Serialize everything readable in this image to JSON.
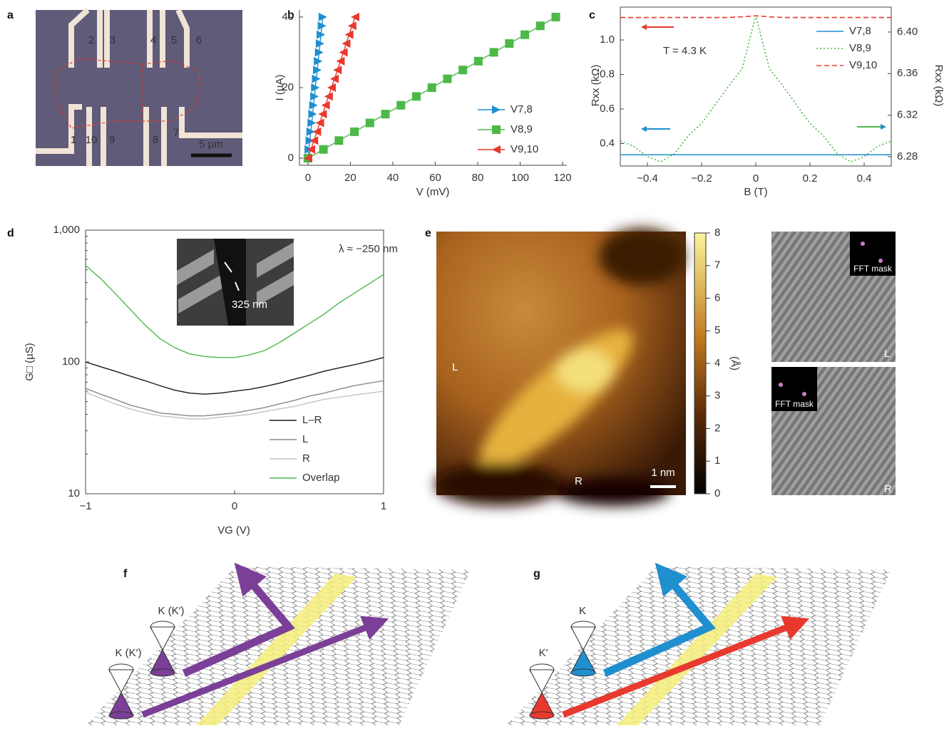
{
  "panel_a": {
    "label": "a",
    "contacts": [
      "1",
      "2",
      "3",
      "4",
      "5",
      "6",
      "7",
      "8",
      "9",
      "10"
    ],
    "scale_bar": "5 µm"
  },
  "chart_data": [
    {
      "type": "line",
      "panel": "b",
      "x_label": "V (mV)",
      "y_label": "I (µA)",
      "xlim": [
        -4,
        122
      ],
      "xticks": [
        0,
        20,
        40,
        60,
        80,
        100,
        120
      ],
      "ylim": [
        -2,
        42
      ],
      "yticks": [
        0,
        20,
        40
      ],
      "grid": false,
      "legend": "lower right",
      "series": [
        {
          "name": "V7,8",
          "color": "#1f8fd0",
          "marker": "triangle-right",
          "x": [
            0,
            0.4,
            0.9,
            1.3,
            1.8,
            2.2,
            2.6,
            3.1,
            3.5,
            3.9,
            4.4,
            4.8,
            5.3,
            5.7,
            6.1,
            6.6,
            7.0
          ],
          "values": [
            0,
            2.5,
            5,
            7.5,
            10,
            12.5,
            15,
            17.5,
            20,
            22.5,
            25,
            27.5,
            30,
            32.5,
            35,
            37.5,
            40
          ]
        },
        {
          "name": "V8,9",
          "color": "#4cb848",
          "marker": "square",
          "x": [
            0,
            7.3,
            14.6,
            21.9,
            29.2,
            36.5,
            43.8,
            51.1,
            58.4,
            65.7,
            73.0,
            80.3,
            87.6,
            94.9,
            102.2,
            109.5,
            116.8
          ],
          "values": [
            0,
            2.5,
            5,
            7.5,
            10,
            12.5,
            15,
            17.5,
            20,
            22.5,
            25,
            27.5,
            30,
            32.5,
            35,
            37.5,
            40
          ]
        },
        {
          "name": "V9,10",
          "color": "#e8392f",
          "marker": "triangle-left",
          "x": [
            0,
            1.4,
            2.8,
            4.2,
            5.6,
            6.9,
            8.3,
            9.7,
            11.1,
            12.5,
            13.9,
            15.3,
            16.7,
            18.0,
            19.4,
            20.8,
            22.2
          ],
          "values": [
            0,
            2.5,
            5,
            7.5,
            10,
            12.5,
            15,
            17.5,
            20,
            22.5,
            25,
            27.5,
            30,
            32.5,
            35,
            37.5,
            40
          ]
        }
      ]
    },
    {
      "type": "line",
      "panel": "c",
      "x_label": "B (T)",
      "y_label": "Rxx (kΩ)",
      "y2_label": "Rxx (kΩ)",
      "annotation": "T = 4.3 K",
      "xlim": [
        -0.5,
        0.5
      ],
      "xticks": [
        {
          "value": -0.4,
          "label": "−0.4"
        },
        {
          "value": -0.2,
          "label": "−0.2"
        },
        0,
        0.2,
        0.4
      ],
      "ylim": [
        0.27,
        1.19
      ],
      "yticks": [
        0.4,
        0.6,
        0.8,
        {
          "value": 1.0,
          "label": "1.0"
        }
      ],
      "y2lim": [
        6.271,
        6.424
      ],
      "y2ticks": [
        {
          "value": 6.28,
          "label": "6.28"
        },
        {
          "value": 6.32,
          "label": "6.32"
        },
        {
          "value": 6.36,
          "label": "6.36"
        },
        {
          "value": 6.4,
          "label": "6.40"
        }
      ],
      "grid": false,
      "legend": "upper right",
      "x": [
        -0.5,
        -0.45,
        -0.4,
        -0.35,
        -0.3,
        -0.25,
        -0.2,
        -0.15,
        -0.1,
        -0.05,
        0,
        0.05,
        0.1,
        0.15,
        0.2,
        0.25,
        0.3,
        0.35,
        0.4,
        0.45,
        0.5
      ],
      "series": [
        {
          "name": "V7,8",
          "color": "#1f8fd0",
          "dash": "solid",
          "values": [
            0.335,
            0.335,
            0.335,
            0.335,
            0.335,
            0.335,
            0.335,
            0.335,
            0.335,
            0.335,
            0.335,
            0.335,
            0.335,
            0.335,
            0.335,
            0.335,
            0.335,
            0.335,
            0.335,
            0.335,
            0.335
          ]
        },
        {
          "name": "V8,9",
          "color": "#4cb848",
          "dash": "dotted",
          "axis": "y2",
          "values": [
            6.295,
            6.29,
            6.28,
            6.275,
            6.283,
            6.3,
            6.312,
            6.33,
            6.348,
            6.365,
            6.416,
            6.365,
            6.348,
            6.33,
            6.312,
            6.3,
            6.283,
            6.275,
            6.28,
            6.29,
            6.295
          ]
        },
        {
          "name": "V9,10",
          "color": "#e8392f",
          "dash": "dashed",
          "values": [
            1.13,
            1.13,
            1.13,
            1.13,
            1.13,
            1.13,
            1.13,
            1.13,
            1.13,
            1.134,
            1.14,
            1.134,
            1.13,
            1.13,
            1.13,
            1.13,
            1.13,
            1.13,
            1.13,
            1.13,
            1.13
          ]
        }
      ]
    },
    {
      "type": "line",
      "panel": "d",
      "x_label": "VG (V)",
      "y_label": "G□ (µS)",
      "annotation": "λ ≈ −250 nm",
      "inset_label": "325 nm",
      "xlim": [
        -1,
        1
      ],
      "xticks": [
        {
          "value": -1,
          "label": "−1"
        },
        0,
        1
      ],
      "ylim": [
        10,
        1000
      ],
      "ylog": true,
      "yticks": [
        10,
        100,
        {
          "value": 1000,
          "label": "1,000"
        }
      ],
      "grid": false,
      "legend": "lower right",
      "x": [
        -1,
        -0.9,
        -0.8,
        -0.7,
        -0.6,
        -0.5,
        -0.4,
        -0.3,
        -0.2,
        -0.1,
        0,
        0.1,
        0.2,
        0.3,
        0.4,
        0.5,
        0.6,
        0.7,
        0.8,
        0.9,
        1
      ],
      "series": [
        {
          "name": "L–R",
          "color": "#1a1a1a",
          "values": [
            100,
            92,
            85,
            78,
            72,
            66,
            61,
            58,
            57,
            58,
            60,
            62,
            65,
            69,
            74,
            79,
            85,
            90,
            95,
            101,
            108
          ]
        },
        {
          "name": "L",
          "color": "#8a8a8a",
          "values": [
            63,
            57,
            52,
            47,
            44,
            41,
            40,
            39,
            39,
            40,
            41,
            43,
            45,
            48,
            51,
            55,
            58,
            62,
            66,
            69,
            72
          ]
        },
        {
          "name": "R",
          "color": "#c4c4c4",
          "values": [
            59,
            53,
            48,
            44,
            41,
            39,
            38,
            37,
            37,
            38,
            39,
            40,
            42,
            44,
            46,
            49,
            52,
            54,
            56,
            58,
            60
          ]
        },
        {
          "name": "Overlap",
          "color": "#4cb848",
          "values": [
            540,
            430,
            330,
            250,
            190,
            150,
            128,
            115,
            110,
            108,
            108,
            113,
            122,
            140,
            165,
            195,
            230,
            280,
            330,
            390,
            460
          ]
        }
      ]
    }
  ],
  "panel_e": {
    "label": "e",
    "colorbar_label": "(Å)",
    "colorbar_lim": [
      0,
      8
    ],
    "colorbar_ticks": [
      0,
      1,
      2,
      3,
      4,
      5,
      6,
      7,
      8
    ],
    "left_label": "L",
    "right_label": "R",
    "scale_bar": "1 nm",
    "fft_mask_labels": [
      "FFT mask",
      "FFT mask"
    ],
    "fft_labels": [
      "L",
      "R"
    ]
  },
  "panel_f": {
    "label": "f",
    "cone_labels": [
      "K (K′)",
      "K (K′)"
    ]
  },
  "panel_g": {
    "label": "g",
    "cone_labels": [
      "K",
      "K′"
    ]
  }
}
